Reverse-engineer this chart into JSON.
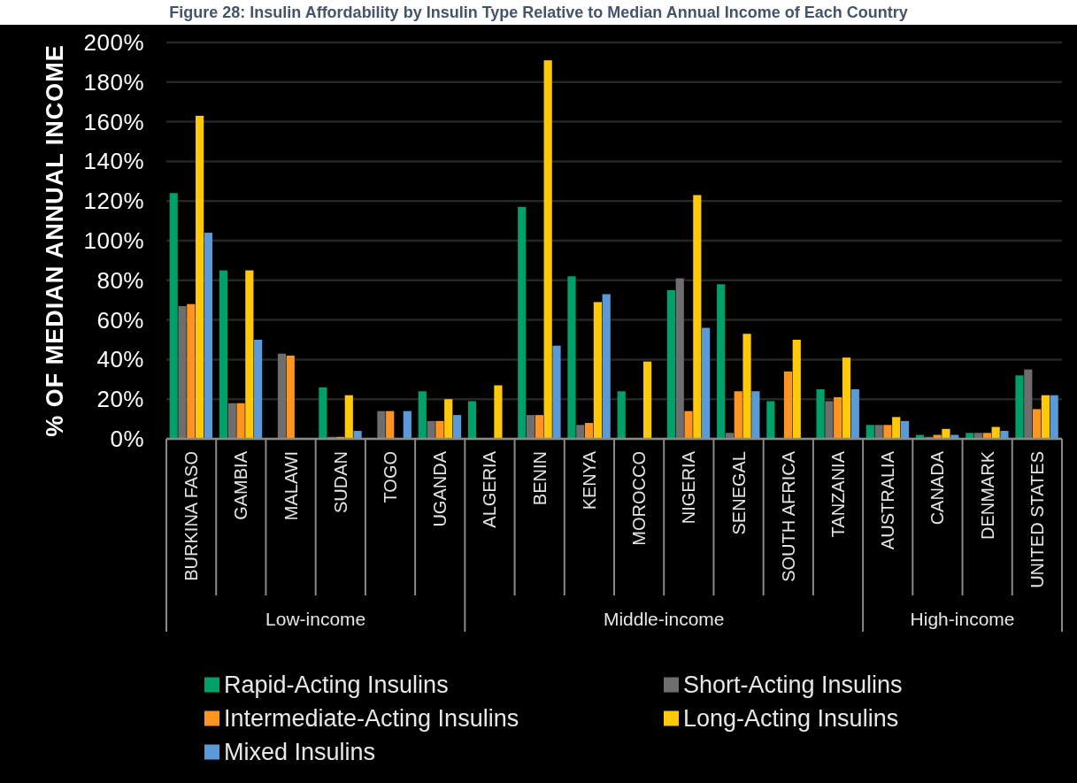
{
  "chart_data": {
    "type": "bar",
    "title": "Figure 28: Insulin Affordability by Insulin Type Relative to Median Annual Income of Each Country",
    "ylabel": "% OF MEDIAN ANNUAL INCOME",
    "categories": [
      "BURKINA FASO",
      "GAMBIA",
      "MALAWI",
      "SUDAN",
      "TOGO",
      "UGANDA",
      "ALGERIA",
      "BENIN",
      "KENYA",
      "MOROCCO",
      "NIGERIA",
      "SENEGAL",
      "SOUTH AFRICA",
      "TANZANIA",
      "AUSTRALIA",
      "CANADA",
      "DENMARK",
      "UNITED STATES"
    ],
    "series": [
      {
        "name": "Rapid-Acting Insulins",
        "color": "#00a06b",
        "values": [
          124,
          85,
          null,
          26,
          null,
          24,
          19,
          117,
          82,
          24,
          75,
          78,
          19,
          25,
          7,
          2,
          3,
          32
        ]
      },
      {
        "name": "Short-Acting Insulins",
        "color": "#6e6e6e",
        "values": [
          67,
          18,
          43,
          1,
          14,
          9,
          null,
          12,
          7,
          null,
          81,
          3,
          null,
          19,
          7,
          1,
          3,
          35
        ]
      },
      {
        "name": "Intermediate-Acting Insulins",
        "color": "#ff9520",
        "values": [
          68,
          18,
          42,
          1,
          14,
          9,
          null,
          12,
          8,
          null,
          14,
          24,
          34,
          21,
          7,
          2,
          3,
          15
        ]
      },
      {
        "name": "Long-Acting Insulins",
        "color": "#ffc90a",
        "values": [
          163,
          85,
          null,
          22,
          null,
          20,
          27,
          191,
          69,
          39,
          123,
          53,
          50,
          41,
          11,
          5,
          6,
          22
        ]
      },
      {
        "name": "Mixed Insulins",
        "color": "#5a9ad8",
        "values": [
          104,
          50,
          null,
          4,
          14,
          12,
          null,
          47,
          73,
          null,
          56,
          24,
          null,
          25,
          9,
          2,
          4,
          22
        ]
      }
    ],
    "ylim": [
      0,
      200
    ],
    "yticks": [
      {
        "value": 0,
        "label": "0%"
      },
      {
        "value": 20,
        "label": "20%"
      },
      {
        "value": 40,
        "label": "40%"
      },
      {
        "value": 60,
        "label": "60%"
      },
      {
        "value": 80,
        "label": "80%"
      },
      {
        "value": 100,
        "label": "100%"
      },
      {
        "value": 120,
        "label": "120%"
      },
      {
        "value": 140,
        "label": "140%"
      },
      {
        "value": 160,
        "label": "160%"
      },
      {
        "value": 180,
        "label": "180%"
      },
      {
        "value": 200,
        "label": "200%"
      }
    ],
    "grid": "y",
    "legend": "bottom",
    "annotations": [
      "Low-income",
      "Middle-income",
      "High-income"
    ]
  }
}
